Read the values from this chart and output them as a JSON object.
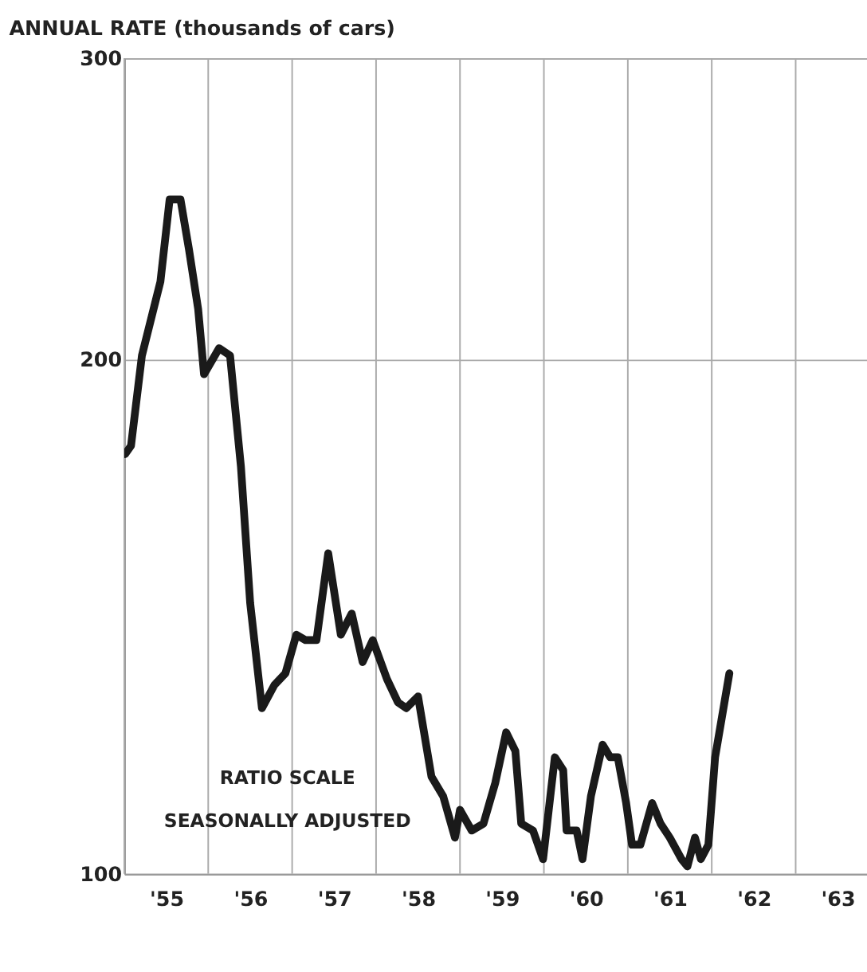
{
  "chart_data": {
    "type": "line",
    "title": "ANNUAL RATE (thousands of cars)",
    "x": [
      1954.51,
      1954.58,
      1954.71,
      1954.93,
      1955.04,
      1955.17,
      1955.27,
      1955.38,
      1955.45,
      1955.63,
      1955.76,
      1955.89,
      1956.0,
      1956.14,
      1956.29,
      1956.42,
      1956.55,
      1956.66,
      1956.79,
      1956.93,
      1957.08,
      1957.21,
      1957.34,
      1957.46,
      1957.63,
      1957.76,
      1957.86,
      1958.0,
      1958.16,
      1958.3,
      1958.44,
      1958.5,
      1958.64,
      1958.78,
      1958.92,
      1959.05,
      1959.16,
      1959.23,
      1959.37,
      1959.49,
      1959.63,
      1959.73,
      1959.77,
      1959.89,
      1959.96,
      1960.06,
      1960.2,
      1960.29,
      1960.38,
      1960.48,
      1960.55,
      1960.65,
      1960.79,
      1960.89,
      1961.0,
      1961.14,
      1961.21,
      1961.3,
      1961.37,
      1961.46,
      1961.54,
      1961.71
    ],
    "series": [
      {
        "color": "#1a1a1a",
        "values": [
          176,
          178,
          201,
          222,
          248,
          248,
          232,
          214,
          196,
          203,
          201,
          173,
          144,
          125,
          129,
          131,
          138,
          137,
          137,
          154,
          138,
          142,
          133,
          137,
          130,
          126,
          125,
          127,
          114,
          111,
          105,
          109,
          106,
          107,
          113,
          121,
          118,
          107,
          106,
          102,
          117,
          115,
          106,
          106,
          102,
          111,
          119,
          117,
          117,
          110,
          104,
          104,
          110,
          107,
          105,
          102,
          101,
          105,
          102,
          104,
          117,
          131
        ]
      }
    ],
    "log": "y",
    "ylim": [
      100,
      300
    ],
    "yticks": [
      100,
      200,
      300
    ],
    "xlim": [
      1954.5,
      1963.35
    ],
    "xticks": [
      {
        "value": 1954.5,
        "label": null
      },
      {
        "value": 1955,
        "label": "'55"
      },
      {
        "value": 1955.5,
        "label": null
      },
      {
        "value": 1956,
        "label": "'56"
      },
      {
        "value": 1956.5,
        "label": null
      },
      {
        "value": 1957,
        "label": "'57"
      },
      {
        "value": 1957.5,
        "label": null
      },
      {
        "value": 1958,
        "label": "'58"
      },
      {
        "value": 1958.5,
        "label": null
      },
      {
        "value": 1959,
        "label": "'59"
      },
      {
        "value": 1959.5,
        "label": null
      },
      {
        "value": 1960,
        "label": "'60"
      },
      {
        "value": 1960.5,
        "label": null
      },
      {
        "value": 1961,
        "label": "'61"
      },
      {
        "value": 1961.5,
        "label": null
      },
      {
        "value": 1962,
        "label": "'62"
      },
      {
        "value": 1962.5,
        "label": null
      },
      {
        "value": 1963,
        "label": "'63"
      }
    ],
    "grid": true,
    "marker": "none",
    "line_style": "solid",
    "annotations": [
      "RATIO SCALE",
      "SEASONALLY ADJUSTED"
    ]
  }
}
